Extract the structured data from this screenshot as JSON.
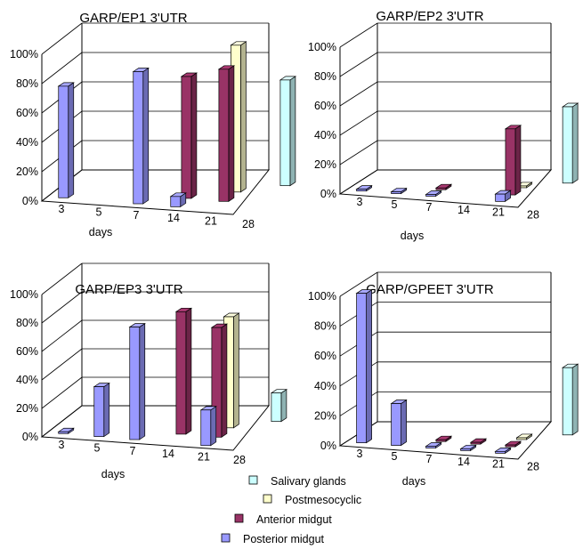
{
  "chart_data": [
    {
      "type": "bar",
      "title": "GARP/EP1 3'UTR",
      "xlabel": "days",
      "ylabel": "",
      "ylim": [
        0,
        100
      ],
      "y_ticks": [
        "0%",
        "20%",
        "40%",
        "60%",
        "80%",
        "100%"
      ],
      "categories": [
        "3",
        "5",
        "7",
        "14",
        "21",
        "28"
      ],
      "series": [
        {
          "name": "Posterior midgut",
          "values": [
            76,
            null,
            90,
            7,
            null,
            null
          ]
        },
        {
          "name": "Anterior midgut",
          "values": [
            null,
            null,
            null,
            83,
            90,
            null
          ]
        },
        {
          "name": "Postmesocyclic",
          "values": [
            null,
            null,
            null,
            null,
            100,
            null
          ]
        },
        {
          "name": "Salivary glands",
          "values": [
            null,
            null,
            null,
            null,
            null,
            72
          ]
        }
      ]
    },
    {
      "type": "bar",
      "title": "GARP/EP2 3'UTR",
      "xlabel": "days",
      "ylabel": "",
      "ylim": [
        0,
        100
      ],
      "y_ticks": [
        "0%",
        "20%",
        "40%",
        "60%",
        "80%",
        "100%"
      ],
      "categories": [
        "3",
        "5",
        "7",
        "14",
        "21",
        "28"
      ],
      "series": [
        {
          "name": "Posterior midgut",
          "values": [
            0,
            0,
            0,
            null,
            5,
            null
          ]
        },
        {
          "name": "Anterior midgut",
          "values": [
            null,
            null,
            0,
            null,
            45,
            null
          ]
        },
        {
          "name": "Postmesocyclic",
          "values": [
            null,
            null,
            null,
            null,
            0,
            null
          ]
        },
        {
          "name": "Salivary glands",
          "values": [
            null,
            null,
            null,
            null,
            null,
            52
          ]
        }
      ]
    },
    {
      "type": "bar",
      "title": "GARP/EP3 3'UTR",
      "xlabel": "days",
      "ylabel": "",
      "ylim": [
        0,
        100
      ],
      "y_ticks": [
        "0%",
        "20%",
        "40%",
        "60%",
        "80%",
        "100%"
      ],
      "categories": [
        "3",
        "5",
        "7",
        "14",
        "21",
        "28"
      ],
      "series": [
        {
          "name": "Posterior midgut",
          "values": [
            0,
            35,
            79,
            null,
            25,
            null
          ]
        },
        {
          "name": "Anterior midgut",
          "values": [
            null,
            null,
            null,
            86,
            77,
            null
          ]
        },
        {
          "name": "Postmesocyclic",
          "values": [
            null,
            null,
            null,
            null,
            78,
            null
          ]
        },
        {
          "name": "Salivary glands",
          "values": [
            null,
            null,
            null,
            null,
            null,
            20
          ]
        }
      ]
    },
    {
      "type": "bar",
      "title": "GARP/GPEET 3'UTR",
      "xlabel": "days",
      "ylabel": "",
      "ylim": [
        0,
        100
      ],
      "y_ticks": [
        "0%",
        "20%",
        "40%",
        "60%",
        "80%",
        "100%"
      ],
      "categories": [
        "3",
        "5",
        "7",
        "14",
        "21",
        "28"
      ],
      "series": [
        {
          "name": "Posterior midgut",
          "values": [
            100,
            28,
            0,
            0,
            0,
            null
          ]
        },
        {
          "name": "Anterior midgut",
          "values": [
            null,
            null,
            0,
            0,
            0,
            null
          ]
        },
        {
          "name": "Postmesocyclic",
          "values": [
            null,
            null,
            null,
            null,
            0,
            null
          ]
        },
        {
          "name": "Salivary glands",
          "values": [
            null,
            null,
            null,
            null,
            null,
            45
          ]
        }
      ]
    }
  ],
  "legend": {
    "items": [
      {
        "label": "Salivary glands",
        "color": "#ccffff"
      },
      {
        "label": "Postmesocyclic",
        "color": "#ffffcc"
      },
      {
        "label": "Anterior midgut",
        "color": "#993366"
      },
      {
        "label": "Posterior midgut",
        "color": "#9999ff"
      }
    ]
  },
  "colors": {
    "Posterior midgut": "#9999ff",
    "Anterior midgut": "#993366",
    "Postmesocyclic": "#ffffcc",
    "Salivary glands": "#ccffff"
  }
}
